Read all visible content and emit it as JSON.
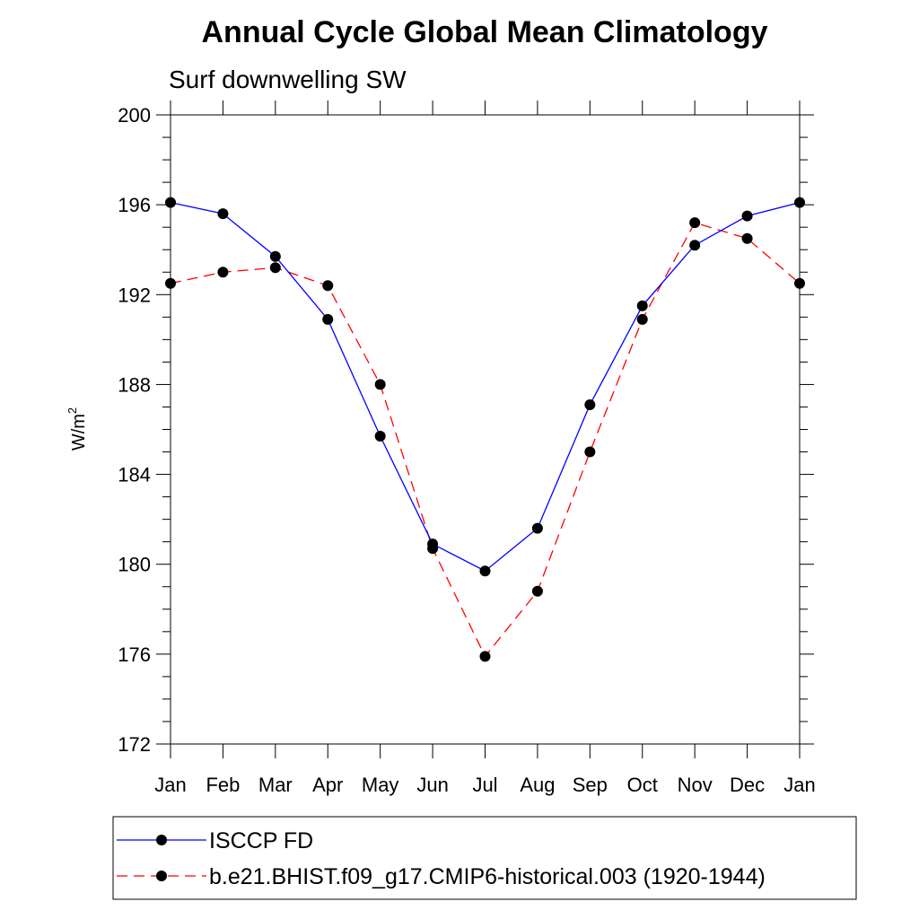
{
  "chart_data": {
    "type": "line",
    "title": "Annual Cycle Global Mean Climatology",
    "subtitle": "Surf downwelling SW",
    "ylabel": "W/m",
    "ylabel_superscript": "2",
    "xlabel": "",
    "categories": [
      "Jan",
      "Feb",
      "Mar",
      "Apr",
      "May",
      "Jun",
      "Jul",
      "Aug",
      "Sep",
      "Oct",
      "Nov",
      "Dec",
      "Jan"
    ],
    "ylim": [
      172,
      200
    ],
    "yticks": [
      "172",
      "176",
      "180",
      "184",
      "188",
      "192",
      "196",
      "200"
    ],
    "grid": false,
    "legend_position": "bottom",
    "series": [
      {
        "name": "ISCCP FD",
        "color": "#0000ff",
        "dash": "solid",
        "marker": "filled-circle",
        "values": [
          196.1,
          195.6,
          193.7,
          190.9,
          185.7,
          180.9,
          179.7,
          181.6,
          187.1,
          191.5,
          194.2,
          195.5,
          196.1
        ]
      },
      {
        "name": "b.e21.BHIST.f09_g17.CMIP6-historical.003 (1920-1944)",
        "color": "#ff0000",
        "dash": "dashed",
        "marker": "filled-circle",
        "values": [
          192.5,
          193.0,
          193.2,
          192.4,
          188.0,
          180.7,
          175.9,
          178.8,
          185.0,
          190.9,
          195.2,
          194.5,
          192.5
        ]
      }
    ]
  }
}
